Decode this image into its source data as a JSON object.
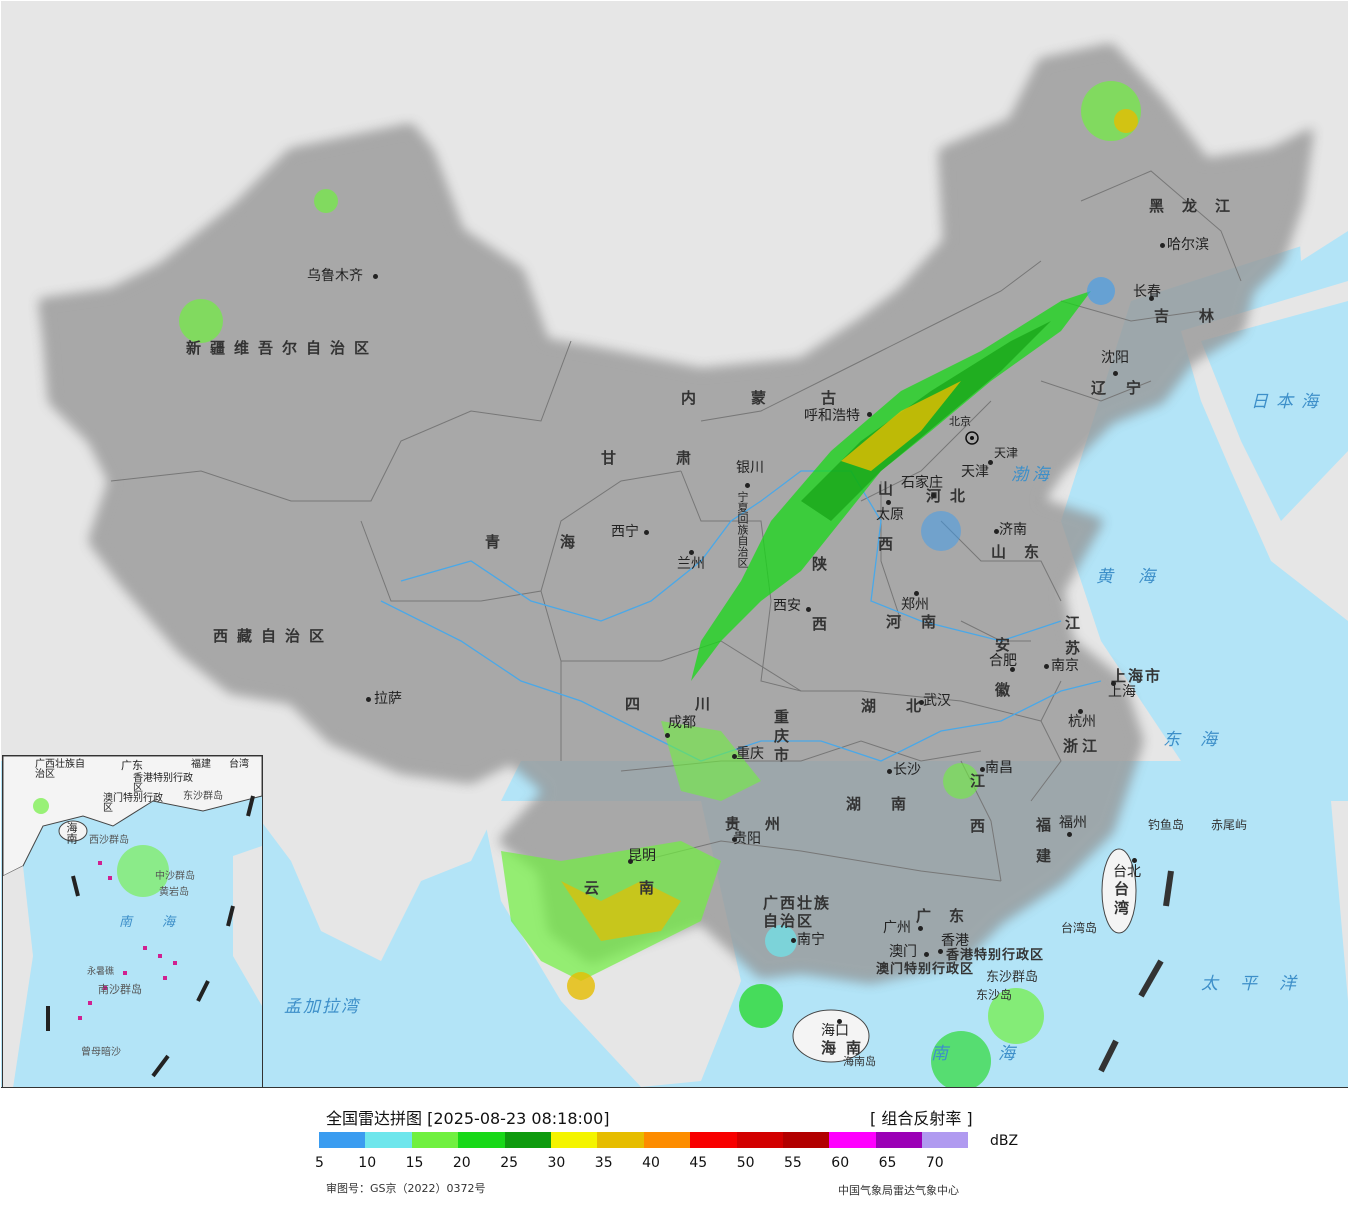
{
  "map": {
    "provinces": [
      {
        "text": "新疆维吾尔自治区"
      },
      {
        "text": "西藏自治区"
      },
      {
        "text": "青海"
      },
      {
        "text": "甘肃"
      },
      {
        "text": "内蒙古"
      },
      {
        "text": "黑龙江"
      },
      {
        "text": "吉林"
      },
      {
        "text": "辽宁"
      },
      {
        "text": "河北"
      },
      {
        "text": "山西"
      },
      {
        "text": "山东"
      },
      {
        "text": "陕西"
      },
      {
        "text": "河南"
      },
      {
        "text": "江苏"
      },
      {
        "text": "安徽"
      },
      {
        "text": "湖北"
      },
      {
        "text": "四川"
      },
      {
        "text": "重庆市"
      },
      {
        "text": "贵州"
      },
      {
        "text": "云南"
      },
      {
        "text": "湖南"
      },
      {
        "text": "江西"
      },
      {
        "text": "浙江"
      },
      {
        "text": "福建"
      },
      {
        "text": "广西壮族自治区"
      },
      {
        "text": "广东"
      },
      {
        "text": "海南"
      },
      {
        "text": "台湾"
      },
      {
        "text": "上海市"
      },
      {
        "text": "宁夏回族自治区"
      },
      {
        "text": "香港特别行政区"
      },
      {
        "text": "澳门特别行政区"
      },
      {
        "text": "天津"
      }
    ],
    "cities": [
      {
        "text": "乌鲁木齐"
      },
      {
        "text": "拉萨"
      },
      {
        "text": "西宁"
      },
      {
        "text": "兰州"
      },
      {
        "text": "银川"
      },
      {
        "text": "呼和浩特"
      },
      {
        "text": "北京"
      },
      {
        "text": "天津"
      },
      {
        "text": "石家庄"
      },
      {
        "text": "太原"
      },
      {
        "text": "济南"
      },
      {
        "text": "郑州"
      },
      {
        "text": "西安"
      },
      {
        "text": "合肥"
      },
      {
        "text": "南京"
      },
      {
        "text": "上海"
      },
      {
        "text": "杭州"
      },
      {
        "text": "武汉"
      },
      {
        "text": "成都"
      },
      {
        "text": "重庆"
      },
      {
        "text": "长沙"
      },
      {
        "text": "南昌"
      },
      {
        "text": "贵阳"
      },
      {
        "text": "昆明"
      },
      {
        "text": "福州"
      },
      {
        "text": "台北"
      },
      {
        "text": "南宁"
      },
      {
        "text": "广州"
      },
      {
        "text": "香港"
      },
      {
        "text": "澳门"
      },
      {
        "text": "海口"
      },
      {
        "text": "哈尔滨"
      },
      {
        "text": "长春"
      },
      {
        "text": "沈阳"
      }
    ],
    "seas": [
      {
        "text": "日本海"
      },
      {
        "text": "渤海"
      },
      {
        "text": "黄海"
      },
      {
        "text": "东海"
      },
      {
        "text": "太平洋"
      },
      {
        "text": "孟加拉湾"
      },
      {
        "text": "南海"
      }
    ],
    "islands": [
      {
        "text": "钓鱼岛"
      },
      {
        "text": "赤尾屿"
      },
      {
        "text": "台湾岛"
      },
      {
        "text": "东沙群岛"
      },
      {
        "text": "东沙岛"
      },
      {
        "text": "海南岛"
      }
    ],
    "inset_labels": [
      {
        "text": "广西壮族自治区"
      },
      {
        "text": "广东"
      },
      {
        "text": "福建"
      },
      {
        "text": "台湾"
      },
      {
        "text": "香港特别行政区"
      },
      {
        "text": "澳门特别行政区"
      },
      {
        "text": "东沙群岛"
      },
      {
        "text": "海南"
      },
      {
        "text": "西沙群岛"
      },
      {
        "text": "中沙群岛"
      },
      {
        "text": "黄岩岛"
      },
      {
        "text": "南海"
      },
      {
        "text": "永暑礁"
      },
      {
        "text": "南沙群岛"
      },
      {
        "text": "曾母暗沙"
      }
    ]
  },
  "legend": {
    "title": "全国雷达拼图 [2025-08-23 08:18:00]",
    "product": "[ 组合反射率 ]",
    "unit": "dBZ",
    "ticks": [
      "5",
      "10",
      "15",
      "20",
      "25",
      "30",
      "35",
      "40",
      "45",
      "50",
      "55",
      "60",
      "65",
      "70"
    ],
    "colors": [
      "#3a9cf0",
      "#6ee6ec",
      "#70f040",
      "#18d818",
      "#0e9a0e",
      "#f4f400",
      "#e6bd00",
      "#fd8c00",
      "#f80000",
      "#d20000",
      "#b20000",
      "#ff00ff",
      "#9b00b6",
      "#b09af0"
    ],
    "credit_left": "审图号：GS京（2022）0372号",
    "credit_right": "中国气象局雷达气象中心"
  }
}
